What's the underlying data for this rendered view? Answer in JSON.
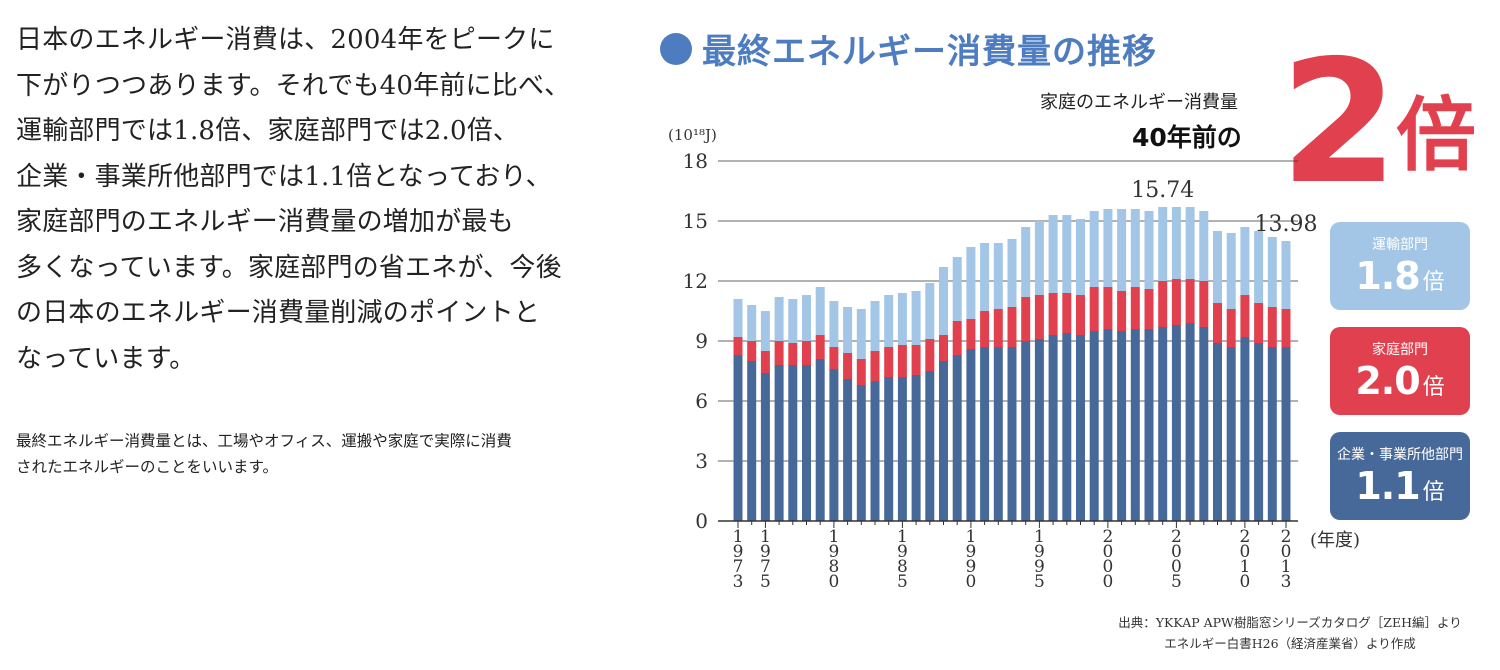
{
  "body_text": [
    "日本のエネルギー消費は、2004年をピークに",
    "下がりつつあります。それでも40年前に比べ、",
    "運輸部門では1.8倍、家庭部門では2.0倍、",
    "企業・事業所他部門では1.1倍となっており、",
    "家庭部門のエネルギー消費量の増加が最も",
    "多くなっています。家庭部門の省エネが、今後",
    "の日本のエネルギー消費量削減のポイントと",
    "なっています。"
  ],
  "note_text": [
    "最終エネルギー消費量とは、工場やオフィス、運搬や家庭で実際に消費",
    "されたエネルギーのことをいいます。"
  ],
  "headline": {
    "sub": "家庭のエネルギー消費量",
    "main": "40年前の",
    "big": "2",
    "unit": "倍"
  },
  "badges": [
    {
      "label": "運輸部門",
      "value": "1.8",
      "unit": "倍",
      "color": "#a3c6e6"
    },
    {
      "label": "家庭部門",
      "value": "2.0",
      "unit": "倍",
      "color": "#e1414e"
    },
    {
      "label": "企業・事業所他部門",
      "value": "1.1",
      "unit": "倍",
      "color": "#47699a"
    }
  ],
  "source": [
    "出典：YKKAP APW樹脂窓シリーズカタログ［ZEH編］より",
    "エネルギー白書H26（経済産業省）より作成"
  ],
  "colors": {
    "title": "#4d7cc0",
    "accent": "#e1414e",
    "business": "#47699a",
    "household": "#e1414e",
    "transport": "#a3c6e6"
  },
  "chart_data": {
    "type": "bar",
    "stacked": true,
    "title": "最終エネルギー消費量の推移",
    "unit_label": "(10¹⁸J)",
    "xlabel": "(年度)",
    "ylim": [
      0,
      18
    ],
    "yticks": [
      0,
      3,
      6,
      9,
      12,
      15,
      18
    ],
    "grid": true,
    "categories": [
      1973,
      1974,
      1975,
      1976,
      1977,
      1978,
      1979,
      1980,
      1981,
      1982,
      1983,
      1984,
      1985,
      1986,
      1987,
      1988,
      1989,
      1990,
      1991,
      1992,
      1993,
      1994,
      1995,
      1996,
      1997,
      1998,
      1999,
      2000,
      2001,
      2002,
      2003,
      2004,
      2005,
      2006,
      2007,
      2008,
      2009,
      2010,
      2011,
      2012,
      2013
    ],
    "xtick_labels": [
      "1973",
      "1975",
      "1980",
      "1985",
      "1990",
      "1995",
      "2000",
      "2005",
      "2010",
      "2013"
    ],
    "series": [
      {
        "values": [
          8.3,
          8.0,
          7.4,
          7.8,
          7.8,
          7.8,
          8.1,
          7.6,
          7.1,
          6.8,
          7.0,
          7.2,
          7.2,
          7.3,
          7.5,
          8.0,
          8.3,
          8.6,
          8.7,
          8.7,
          8.7,
          9.0,
          9.1,
          9.3,
          9.4,
          9.3,
          9.5,
          9.6,
          9.5,
          9.6,
          9.6,
          9.7,
          9.8,
          9.9,
          9.7,
          8.9,
          8.7,
          9.2,
          8.9,
          8.7,
          8.7
        ]
      },
      {
        "values": [
          0.9,
          1.0,
          1.1,
          1.2,
          1.1,
          1.2,
          1.2,
          1.1,
          1.3,
          1.3,
          1.5,
          1.5,
          1.6,
          1.5,
          1.6,
          1.3,
          1.7,
          1.5,
          1.8,
          1.9,
          2.0,
          2.2,
          2.2,
          2.1,
          2.0,
          2.0,
          2.2,
          2.1,
          2.0,
          2.1,
          2.0,
          2.3,
          2.3,
          2.2,
          2.3,
          2.0,
          1.9,
          2.1,
          2.0,
          2.0,
          1.9
        ]
      },
      {
        "values": [
          1.9,
          1.8,
          2.0,
          2.2,
          2.2,
          2.3,
          2.4,
          2.3,
          2.3,
          2.5,
          2.5,
          2.6,
          2.6,
          2.7,
          2.8,
          3.4,
          3.2,
          3.6,
          3.4,
          3.3,
          3.4,
          3.5,
          3.7,
          3.9,
          3.9,
          3.8,
          3.8,
          3.9,
          4.1,
          3.9,
          3.9,
          3.7,
          3.6,
          3.6,
          3.5,
          3.6,
          3.8,
          3.4,
          3.6,
          3.5,
          3.4
        ]
      }
    ],
    "annotations": [
      {
        "x": 2004,
        "text": "15.74"
      },
      {
        "x": 2013,
        "text": "13.98"
      }
    ]
  }
}
